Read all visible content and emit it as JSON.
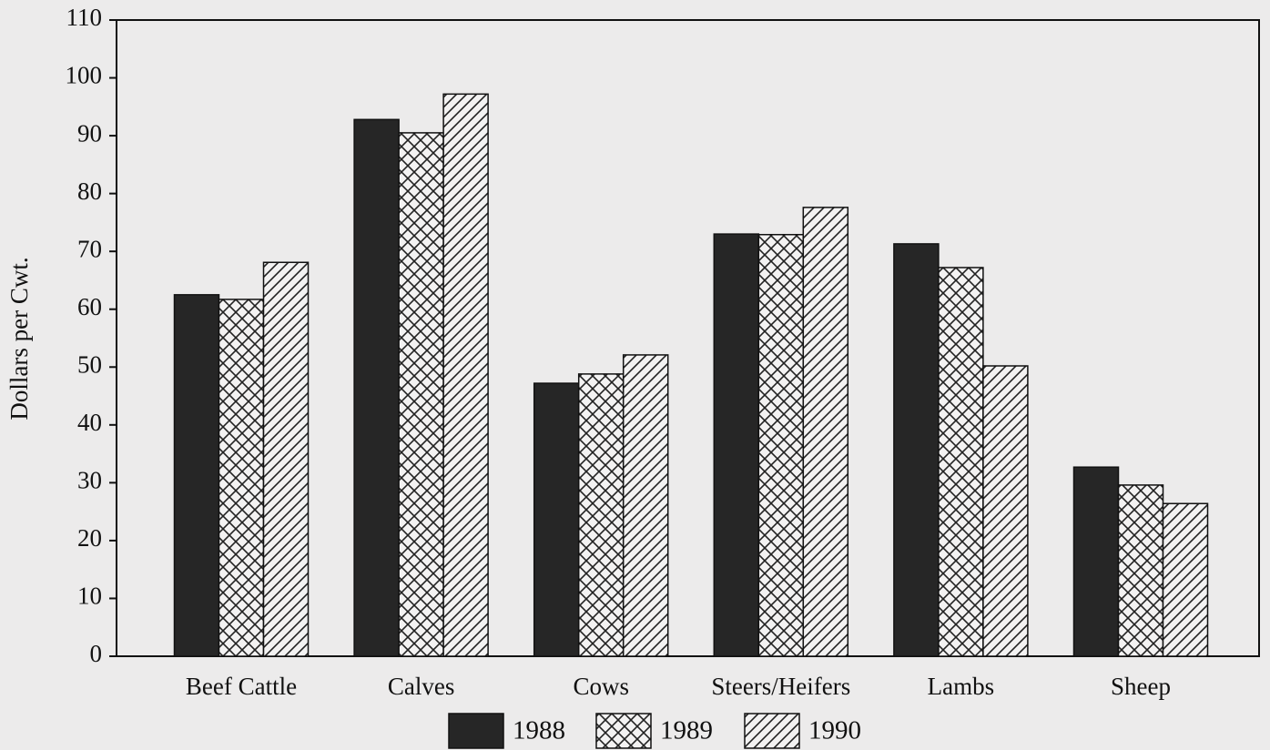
{
  "chart_data": {
    "type": "bar",
    "y_label": "Dollars per Cwt.",
    "categories": [
      "Beef Cattle",
      "Calves",
      "Cows",
      "Steers/Heifers",
      "Lambs",
      "Sheep"
    ],
    "series": [
      {
        "name": "1988",
        "color": "#262626",
        "pattern": "solid",
        "values": [
          62.5,
          92.8,
          47.2,
          73.0,
          71.3,
          32.7
        ]
      },
      {
        "name": "1989",
        "color": "#262626",
        "pattern": "crosshatch",
        "values": [
          61.7,
          90.5,
          48.8,
          72.9,
          67.2,
          29.6
        ]
      },
      {
        "name": "1990",
        "color": "#262626",
        "pattern": "diagonal",
        "values": [
          68.1,
          97.2,
          52.1,
          77.6,
          50.2,
          26.4
        ]
      }
    ],
    "ylim": [
      0,
      110
    ],
    "yticks": [
      0,
      10,
      20,
      30,
      40,
      50,
      60,
      70,
      80,
      90,
      100,
      110
    ],
    "grid": false
  }
}
